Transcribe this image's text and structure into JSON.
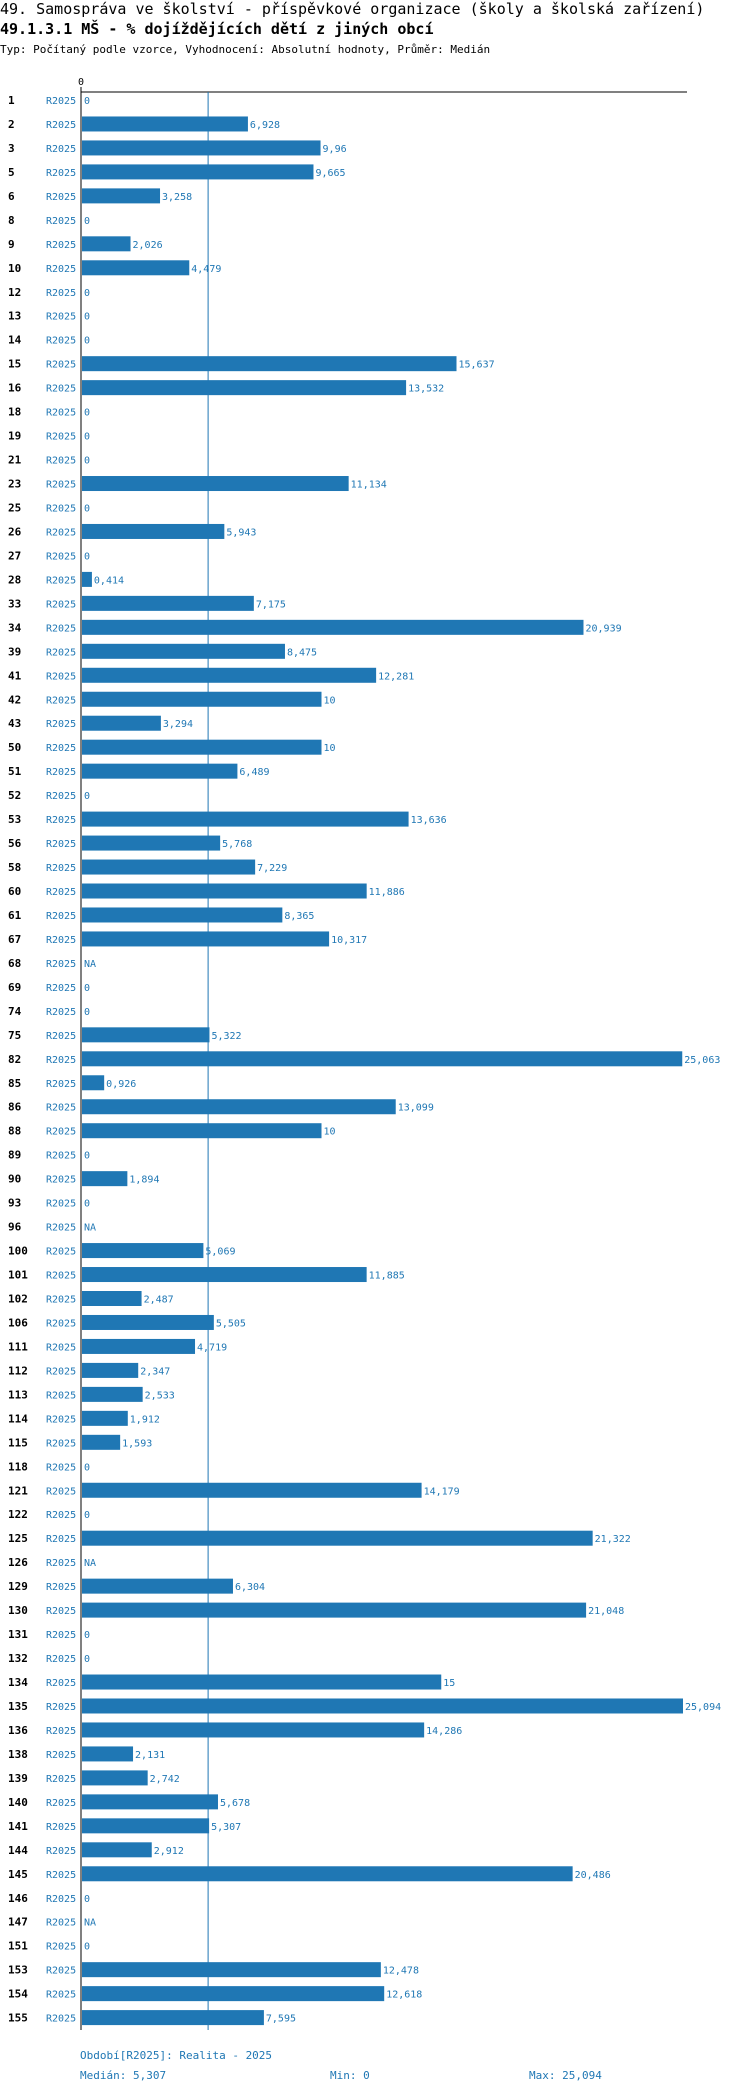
{
  "header": {
    "title": "49. Samospráva ve školství - příspěvkové organizace (školy a školská zařízení)",
    "subtitle": "49.1.3.1 MŠ - % dojíždějících dětí z jiných obcí",
    "type_line": "Typ: Počítaný podle vzorce, Vyhodnocení: Absolutní hodnoty, Průměr: Medián"
  },
  "colors": {
    "bar": "#1f77b4",
    "label": "#1f77b4",
    "axis": "#000000"
  },
  "chart_data": {
    "type": "bar",
    "orientation": "horizontal",
    "series_label": "R2025",
    "x_axis_tick": "0",
    "xlim": [
      0,
      25.094
    ],
    "median": 5.307,
    "categories": [
      "1",
      "2",
      "3",
      "5",
      "6",
      "8",
      "9",
      "10",
      "12",
      "13",
      "14",
      "15",
      "16",
      "18",
      "19",
      "21",
      "23",
      "25",
      "26",
      "27",
      "28",
      "33",
      "34",
      "39",
      "41",
      "42",
      "43",
      "50",
      "51",
      "52",
      "53",
      "56",
      "58",
      "60",
      "61",
      "67",
      "68",
      "69",
      "74",
      "75",
      "82",
      "85",
      "86",
      "88",
      "89",
      "90",
      "93",
      "96",
      "100",
      "101",
      "102",
      "106",
      "111",
      "112",
      "113",
      "114",
      "115",
      "118",
      "121",
      "122",
      "125",
      "126",
      "129",
      "130",
      "131",
      "132",
      "134",
      "135",
      "136",
      "138",
      "139",
      "140",
      "141",
      "144",
      "145",
      "146",
      "147",
      "151",
      "153",
      "154",
      "155"
    ],
    "values": [
      0,
      6.928,
      9.96,
      9.665,
      3.258,
      0,
      2.026,
      4.479,
      0,
      0,
      0,
      15.637,
      13.532,
      0,
      0,
      0,
      11.134,
      0,
      5.943,
      0,
      0.414,
      7.175,
      20.939,
      8.475,
      12.281,
      10,
      3.294,
      10,
      6.489,
      0,
      13.636,
      5.768,
      7.229,
      11.886,
      8.365,
      10.317,
      null,
      0,
      0,
      5.322,
      25.063,
      0.926,
      13.099,
      10,
      0,
      1.894,
      0,
      null,
      5.069,
      11.885,
      2.487,
      5.505,
      4.719,
      2.347,
      2.533,
      1.912,
      1.593,
      0,
      14.179,
      0,
      21.322,
      null,
      6.304,
      21.048,
      0,
      0,
      15,
      25.094,
      14.286,
      2.131,
      2.742,
      5.678,
      5.307,
      2.912,
      20.486,
      0,
      null,
      0,
      12.478,
      12.618,
      7.595
    ],
    "value_labels": [
      "0",
      "6,928",
      "9,96",
      "9,665",
      "3,258",
      "0",
      "2,026",
      "4,479",
      "0",
      "0",
      "0",
      "15,637",
      "13,532",
      "0",
      "0",
      "0",
      "11,134",
      "0",
      "5,943",
      "0",
      "0,414",
      "7,175",
      "20,939",
      "8,475",
      "12,281",
      "10",
      "3,294",
      "10",
      "6,489",
      "0",
      "13,636",
      "5,768",
      "7,229",
      "11,886",
      "8,365",
      "10,317",
      "NA",
      "0",
      "0",
      "5,322",
      "25,063",
      "0,926",
      "13,099",
      "10",
      "0",
      "1,894",
      "0",
      "NA",
      "5,069",
      "11,885",
      "2,487",
      "5,505",
      "4,719",
      "2,347",
      "2,533",
      "1,912",
      "1,593",
      "0",
      "14,179",
      "0",
      "21,322",
      "NA",
      "6,304",
      "21,048",
      "0",
      "0",
      "15",
      "25,094",
      "14,286",
      "2,131",
      "2,742",
      "5,678",
      "5,307",
      "2,912",
      "20,486",
      "0",
      "NA",
      "0",
      "12,478",
      "12,618",
      "7,595"
    ]
  },
  "footer": {
    "period": "Období[R2025]: Realita - 2025",
    "median": "Medián: 5,307",
    "min": "Min: 0",
    "max": "Max: 25,094"
  }
}
